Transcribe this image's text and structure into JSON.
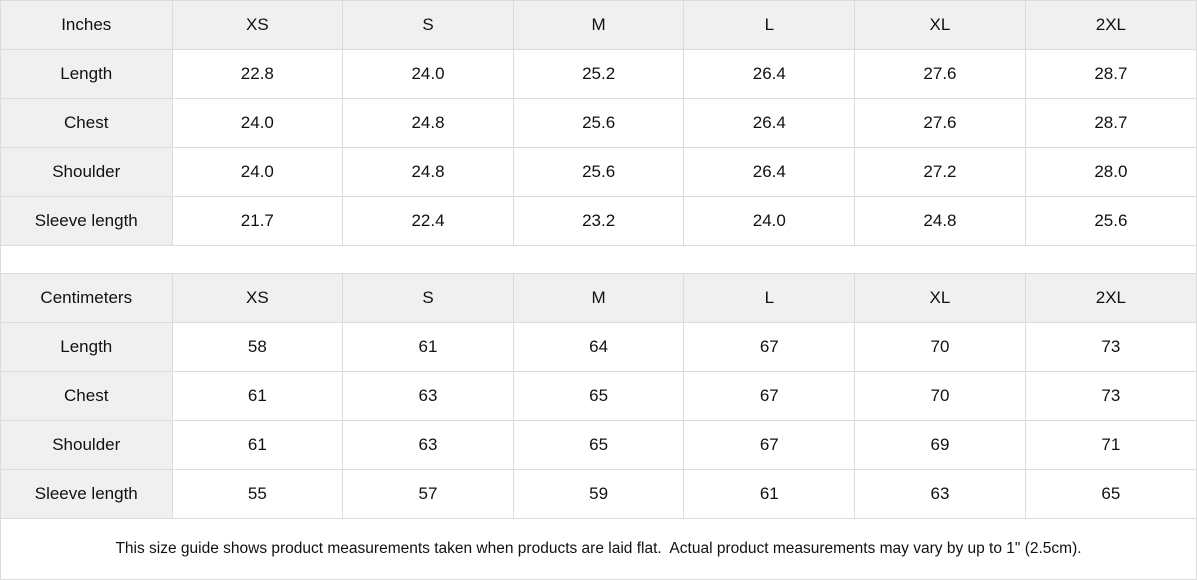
{
  "colors": {
    "header_background": "#f0f0f0",
    "label_column_background": "#f0f0f0",
    "border": "#dcdcdc",
    "text": "#111111",
    "background": "#ffffff"
  },
  "tables": [
    {
      "unit_label": "Inches",
      "columns": [
        "XS",
        "S",
        "M",
        "L",
        "XL",
        "2XL"
      ],
      "rows": [
        {
          "label": "Length",
          "values": [
            "22.8",
            "24.0",
            "25.2",
            "26.4",
            "27.6",
            "28.7"
          ]
        },
        {
          "label": "Chest",
          "values": [
            "24.0",
            "24.8",
            "25.6",
            "26.4",
            "27.6",
            "28.7"
          ]
        },
        {
          "label": "Shoulder",
          "values": [
            "24.0",
            "24.8",
            "25.6",
            "26.4",
            "27.2",
            "28.0"
          ]
        },
        {
          "label": "Sleeve length",
          "values": [
            "21.7",
            "22.4",
            "23.2",
            "24.0",
            "24.8",
            "25.6"
          ]
        }
      ]
    },
    {
      "unit_label": "Centimeters",
      "columns": [
        "XS",
        "S",
        "M",
        "L",
        "XL",
        "2XL"
      ],
      "rows": [
        {
          "label": "Length",
          "values": [
            "58",
            "61",
            "64",
            "67",
            "70",
            "73"
          ]
        },
        {
          "label": "Chest",
          "values": [
            "61",
            "63",
            "65",
            "67",
            "70",
            "73"
          ]
        },
        {
          "label": "Shoulder",
          "values": [
            "61",
            "63",
            "65",
            "67",
            "69",
            "71"
          ]
        },
        {
          "label": "Sleeve length",
          "values": [
            "55",
            "57",
            "59",
            "61",
            "63",
            "65"
          ]
        }
      ]
    }
  ],
  "footer": {
    "note": "This size guide shows product measurements taken when products are laid flat.  Actual product measurements may vary by up to 1\" (2.5cm)."
  }
}
